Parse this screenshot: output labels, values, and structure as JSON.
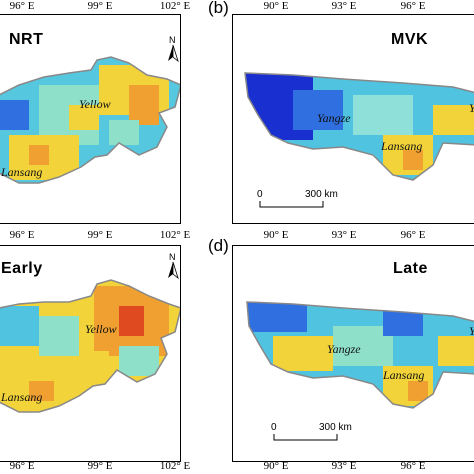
{
  "figure": {
    "panels": [
      {
        "letter": "",
        "title": "NRT",
        "top_ticks": [
          "96° E",
          "99° E",
          "102° E"
        ],
        "bottom_ticks": [
          "96° E",
          "99° E",
          "102° E"
        ],
        "basins": [
          "Yellow",
          "Lansang"
        ],
        "has_north_arrow": true,
        "north_label": "N",
        "scale_bar": null
      },
      {
        "letter": "(b)",
        "title": "MVK",
        "top_ticks": [
          "90° E",
          "93° E",
          "96° E"
        ],
        "bottom_ticks": [
          "90° E",
          "93° E",
          "96° E"
        ],
        "basins": [
          "Yangze",
          "Lansang",
          "Y"
        ],
        "has_north_arrow": false,
        "scale_bar": {
          "start": "0",
          "end": "300 km"
        }
      },
      {
        "letter": "",
        "title": "Early",
        "top_ticks": [
          "96° E",
          "99° E",
          "102° E"
        ],
        "bottom_ticks": [
          "96° E",
          "99° E",
          "102° E"
        ],
        "basins": [
          "Yellow",
          "Lansang"
        ],
        "has_north_arrow": true,
        "north_label": "N",
        "scale_bar": null
      },
      {
        "letter": "(d)",
        "title": "Late",
        "top_ticks": [
          "90° E",
          "93° E",
          "96° E"
        ],
        "bottom_ticks": [
          "90° E",
          "93° E",
          "96° E"
        ],
        "basins": [
          "Yangze",
          "Lansang",
          "Y"
        ],
        "has_north_arrow": false,
        "scale_bar": {
          "start": "0",
          "end": "300 km"
        }
      }
    ],
    "colors": {
      "deep_blue": "#1a2fd0",
      "blue": "#2f6fe0",
      "cyan": "#4fc3e0",
      "light_cyan": "#8fe0d8",
      "yellow": "#f2d43a",
      "orange": "#f0a030",
      "red": "#e04a20",
      "outline": "#888888"
    }
  }
}
